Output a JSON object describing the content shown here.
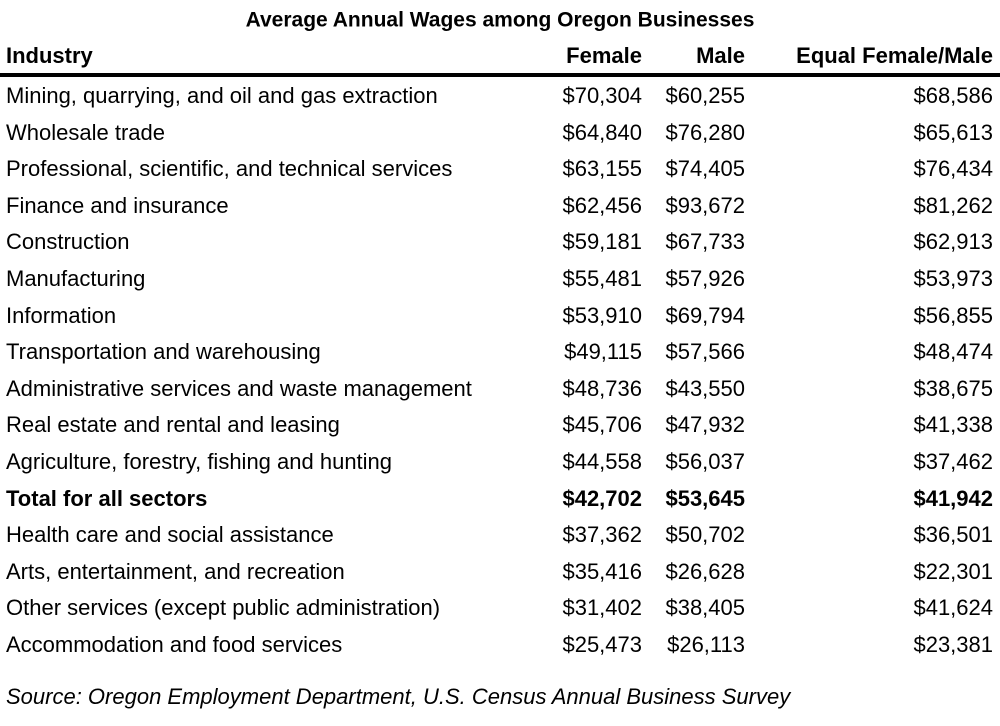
{
  "title": "Average Annual Wages among Oregon Businesses",
  "table": {
    "columns": [
      "Industry",
      "Female",
      "Male",
      "Equal Female/Male"
    ],
    "rows": [
      [
        "Mining, quarrying, and oil and gas extraction",
        "$70,304",
        "$60,255",
        "$68,586"
      ],
      [
        "Wholesale trade",
        "$64,840",
        "$76,280",
        "$65,613"
      ],
      [
        "Professional, scientific, and technical services",
        "$63,155",
        "$74,405",
        "$76,434"
      ],
      [
        "Finance and insurance",
        "$62,456",
        "$93,672",
        "$81,262"
      ],
      [
        "Construction",
        "$59,181",
        "$67,733",
        "$62,913"
      ],
      [
        "Manufacturing",
        "$55,481",
        "$57,926",
        "$53,973"
      ],
      [
        "Information",
        "$53,910",
        "$69,794",
        "$56,855"
      ],
      [
        "Transportation and warehousing",
        "$49,115",
        "$57,566",
        "$48,474"
      ],
      [
        "Administrative services and waste management",
        "$48,736",
        "$43,550",
        "$38,675"
      ],
      [
        "Real estate and rental and leasing",
        "$45,706",
        "$47,932",
        "$41,338"
      ],
      [
        "Agriculture, forestry, fishing and hunting",
        "$44,558",
        "$56,037",
        "$37,462"
      ],
      [
        "Total for all sectors",
        "$42,702",
        "$53,645",
        "$41,942"
      ],
      [
        "Health care and social assistance",
        "$37,362",
        "$50,702",
        "$36,501"
      ],
      [
        "Arts, entertainment, and recreation",
        "$35,416",
        "$26,628",
        "$22,301"
      ],
      [
        "Other services (except public administration)",
        "$31,402",
        "$38,405",
        "$41,624"
      ],
      [
        "Accommodation and food services",
        "$25,473",
        "$26,113",
        "$23,381"
      ]
    ]
  },
  "source": "Source: Oregon Employment Department, U.S. Census Annual Business Survey"
}
